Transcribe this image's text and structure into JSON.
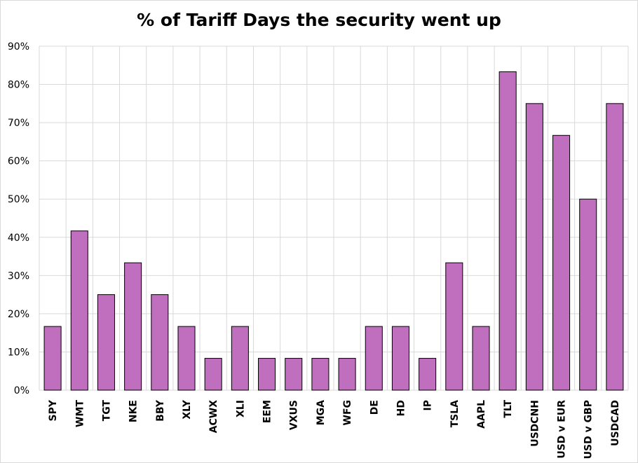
{
  "chart_data": {
    "type": "bar",
    "title": "% of Tariff Days the security went up",
    "xlabel": "",
    "ylabel": "",
    "ylim": [
      0,
      0.9
    ],
    "y_ticks": [
      "0%",
      "10%",
      "20%",
      "30%",
      "40%",
      "50%",
      "60%",
      "70%",
      "80%",
      "90%"
    ],
    "grid": true,
    "legend": "none",
    "categories": [
      "SPY",
      "WMT",
      "TGT",
      "NKE",
      "BBY",
      "XLY",
      "ACWX",
      "XLI",
      "EEM",
      "VXUS",
      "MGA",
      "WFG",
      "DE",
      "HD",
      "IP",
      "TSLA",
      "AAPL",
      "TLT",
      "USDCNH",
      "USD v EUR",
      "USD v GBP",
      "USDCAD"
    ],
    "values": [
      0.1667,
      0.4167,
      0.25,
      0.3333,
      0.25,
      0.1667,
      0.0833,
      0.1667,
      0.0833,
      0.0833,
      0.0833,
      0.0833,
      0.1667,
      0.1667,
      0.0833,
      0.3333,
      0.1667,
      0.8333,
      0.75,
      0.6667,
      0.5,
      0.75
    ],
    "colors": {
      "bar": "#bf6fbd",
      "bar_border": "#000000",
      "grid": "#d9d9d9"
    }
  }
}
